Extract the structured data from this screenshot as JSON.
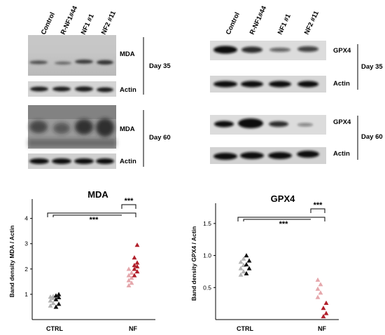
{
  "lanes": [
    "Control",
    "R-NF1#44",
    "NF1 #1",
    "NF2 #11"
  ],
  "blots_left": {
    "mda": "MDA",
    "actin": "Actin",
    "day35": "Day 35",
    "day60": "Day 60"
  },
  "blots_right": {
    "gpx4": "GPX4",
    "actin": "Actin",
    "day35": "Day 35",
    "day60": "Day 60"
  },
  "colors": {
    "ctrl_light": "#b4b4b4",
    "ctrl_dark": "#111111",
    "nf_light": "#e5a7ac",
    "nf_dark": "#b11f2a"
  },
  "chart_data": [
    {
      "type": "scatter",
      "title": "MDA",
      "ylabel": "Band density  MDA  /  Actin",
      "categories": [
        "CTRL",
        "NF"
      ],
      "yticks": [
        1,
        2,
        3,
        4
      ],
      "ylim": [
        0,
        4.6
      ],
      "significance": [
        "***",
        "***"
      ],
      "series": [
        {
          "group": "CTRL",
          "shade": "light",
          "values": [
            0.55,
            0.65,
            0.75,
            0.85,
            0.9,
            0.92
          ]
        },
        {
          "group": "CTRL",
          "shade": "dark",
          "values": [
            0.5,
            0.62,
            0.8,
            0.88,
            0.95,
            1.0
          ]
        },
        {
          "group": "NF",
          "shade": "light",
          "values": [
            1.35,
            1.45,
            1.55,
            1.65,
            1.75,
            1.85,
            2.0
          ]
        },
        {
          "group": "NF",
          "shade": "dark",
          "values": [
            1.75,
            1.9,
            2.0,
            2.1,
            2.15,
            2.25,
            2.45,
            2.95
          ]
        }
      ]
    },
    {
      "type": "scatter",
      "title": "GPX4",
      "ylabel": "Band density  GPX4  /  Actin",
      "categories": [
        "CTRL",
        "NF"
      ],
      "yticks": [
        0.5,
        1.0,
        1.5
      ],
      "ylim": [
        0,
        1.75
      ],
      "significance": [
        "***",
        "***"
      ],
      "series": [
        {
          "group": "CTRL",
          "shade": "light",
          "values": [
            0.7,
            0.75,
            0.8,
            0.85,
            0.9,
            0.95
          ]
        },
        {
          "group": "CTRL",
          "shade": "dark",
          "values": [
            0.72,
            0.8,
            0.86,
            0.92,
            1.0
          ]
        },
        {
          "group": "NF",
          "shade": "light",
          "values": [
            0.35,
            0.42,
            0.48,
            0.55,
            0.62
          ]
        },
        {
          "group": "NF",
          "shade": "dark",
          "values": [
            0.05,
            0.1,
            0.18,
            0.26
          ]
        }
      ]
    }
  ]
}
